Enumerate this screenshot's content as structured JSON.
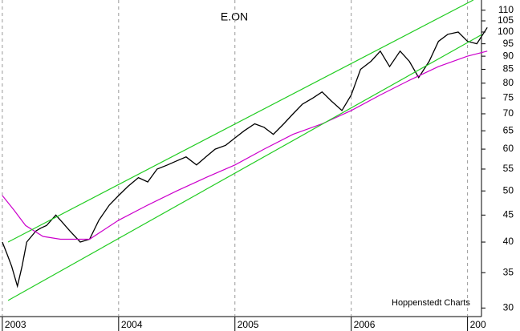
{
  "chart_data": {
    "type": "line",
    "title": "E.ON",
    "annotation": "Hoppenstedt Charts",
    "log_y": true,
    "xgrid": true,
    "xlim": [
      2002.98,
      2007.12
    ],
    "xticks": [
      2003,
      2004,
      2005,
      2006,
      {
        "value": 2007,
        "label": "200"
      }
    ],
    "ylim": [
      28.9,
      115
    ],
    "yticks": [
      30,
      35,
      40,
      45,
      50,
      55,
      60,
      65,
      70,
      75,
      80,
      85,
      90,
      95,
      100,
      105,
      110
    ],
    "series": [
      {
        "color": "#000000",
        "x": [
          2003.0,
          2003.04,
          2003.08,
          2003.13,
          2003.17,
          2003.21,
          2003.25,
          2003.29,
          2003.33,
          2003.38,
          2003.42,
          2003.46,
          2003.5,
          2003.54,
          2003.58,
          2003.67,
          2003.75,
          2003.83,
          2003.92,
          2004.0,
          2004.08,
          2004.17,
          2004.25,
          2004.33,
          2004.42,
          2004.5,
          2004.58,
          2004.67,
          2004.75,
          2004.83,
          2004.92,
          2005.0,
          2005.08,
          2005.17,
          2005.25,
          2005.33,
          2005.42,
          2005.5,
          2005.58,
          2005.67,
          2005.75,
          2005.83,
          2005.92,
          2006.0,
          2006.08,
          2006.17,
          2006.25,
          2006.33,
          2006.42,
          2006.5,
          2006.58,
          2006.67,
          2006.75,
          2006.83,
          2006.92,
          2007.0,
          2007.08,
          2007.17
        ],
        "values": [
          40,
          38,
          36,
          33,
          36,
          40,
          41,
          42,
          42.5,
          43,
          44,
          45,
          44,
          43,
          42,
          40,
          40.5,
          44,
          47,
          49,
          51,
          53,
          52,
          55,
          56,
          57,
          58,
          56,
          58,
          60,
          61,
          63,
          65,
          67,
          66,
          64,
          67,
          70,
          73,
          75,
          77,
          74,
          71,
          76,
          85,
          88,
          92,
          86,
          92,
          88,
          82,
          88,
          96,
          99,
          100,
          96,
          95,
          102
        ]
      },
      {
        "color": "#cc00cc",
        "x": [
          2003.0,
          2003.1,
          2003.2,
          2003.35,
          2003.5,
          2003.75,
          2004.0,
          2004.25,
          2004.5,
          2004.75,
          2005.0,
          2005.25,
          2005.5,
          2005.75,
          2006.0,
          2006.25,
          2006.5,
          2006.75,
          2007.0,
          2007.17
        ],
        "values": [
          49,
          46,
          43,
          41,
          40.5,
          40.5,
          44,
          47,
          50,
          53,
          56,
          60,
          64,
          67,
          71,
          76,
          81,
          86,
          90,
          92
        ]
      },
      {
        "color": "#22cc22",
        "x": [
          2003.05,
          2007.05
        ],
        "values": [
          40,
          115
        ]
      },
      {
        "color": "#22cc22",
        "x": [
          2003.05,
          2007.12
        ],
        "values": [
          31,
          98.8
        ]
      }
    ]
  }
}
